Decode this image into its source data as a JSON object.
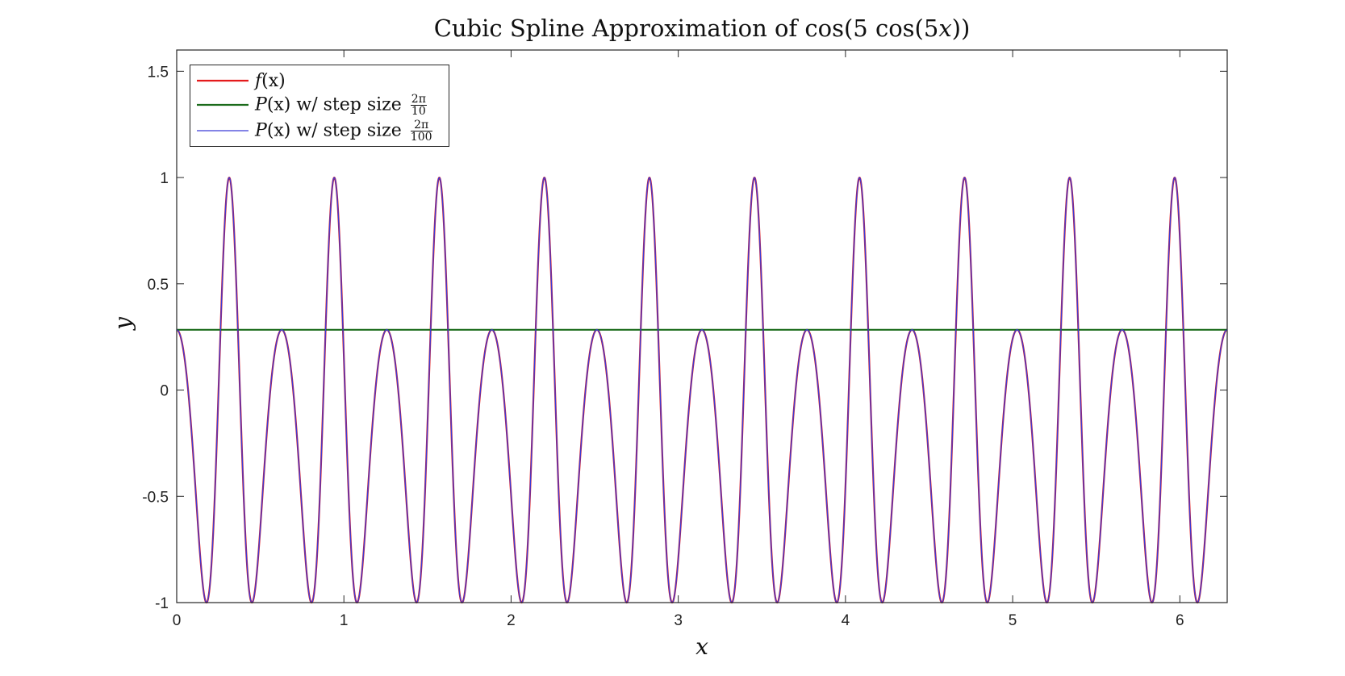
{
  "chart_data": {
    "type": "line",
    "title": {
      "prefix": "Cubic Spline Approximation of cos(5 cos(5",
      "var": "x",
      "suffix": "))"
    },
    "xlabel": "x",
    "ylabel": "y",
    "xlim": [
      0,
      6.2832
    ],
    "ylim": [
      -1,
      1.6
    ],
    "xticks": [
      {
        "value": 0,
        "label": "0"
      },
      {
        "value": 1,
        "label": "1"
      },
      {
        "value": 2,
        "label": "2"
      },
      {
        "value": 3,
        "label": "3"
      },
      {
        "value": 4,
        "label": "4"
      },
      {
        "value": 5,
        "label": "5"
      },
      {
        "value": 6,
        "label": "6"
      }
    ],
    "yticks": [
      {
        "value": -1,
        "label": "-1"
      },
      {
        "value": -0.5,
        "label": "-0.5"
      },
      {
        "value": 0,
        "label": "0"
      },
      {
        "value": 0.5,
        "label": "0.5"
      },
      {
        "value": 1,
        "label": "1"
      },
      {
        "value": 1.5,
        "label": "1.5"
      }
    ],
    "grid": false,
    "box": true,
    "legend_position": "top-left",
    "function": {
      "description": "cos(5 cos(5x)) sampled on [0, 2π]",
      "omega_outer": 5,
      "omega_inner": 5
    },
    "series": [
      {
        "key": "fx",
        "name": {
          "fn": "f",
          "arg": "(x)"
        },
        "color": "#e41a1c",
        "line_width": 2.2,
        "kind": "function"
      },
      {
        "key": "p10",
        "name": {
          "fn": "P",
          "arg": "(x)",
          "text": " w/ step size ",
          "num": "2π",
          "den": "10"
        },
        "color": "#1b6b1b",
        "line_width": 2.2,
        "kind": "constant",
        "value": 0.2837
      },
      {
        "key": "p100",
        "name": {
          "fn": "P",
          "arg": "(x)",
          "text": " w/ step size ",
          "num": "2π",
          "den": "100"
        },
        "color": "#3b3bd6",
        "line_width": 1.3,
        "kind": "function"
      }
    ]
  }
}
